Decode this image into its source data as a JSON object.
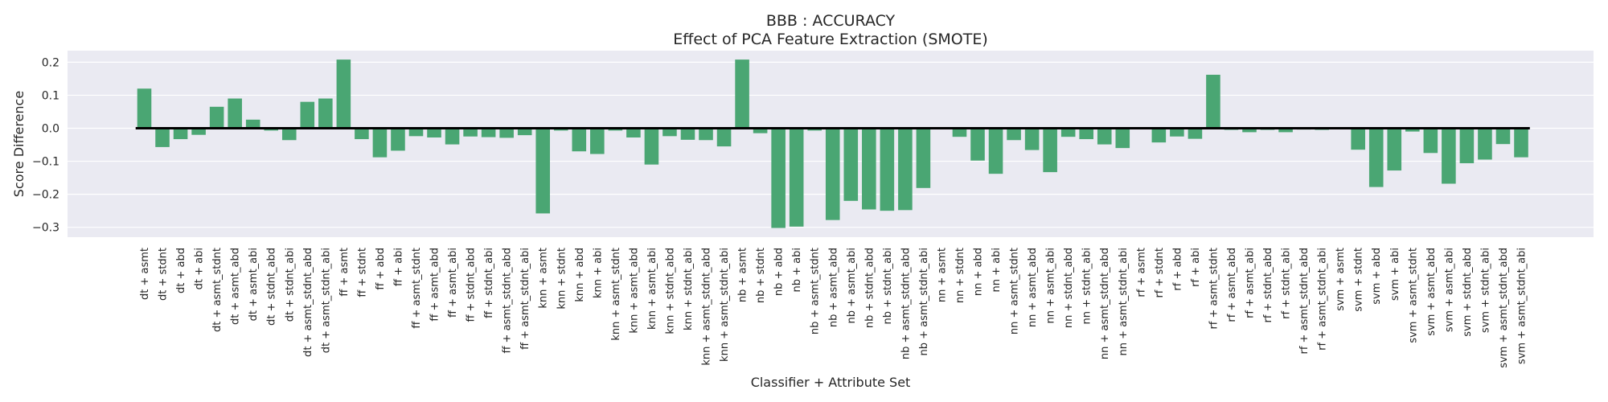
{
  "chart_data": {
    "type": "bar",
    "title": "BBB : ACCURACY",
    "subtitle": "Effect of PCA Feature Extraction (SMOTE)",
    "xlabel": "Classifier + Attribute Set",
    "ylabel": "Score Difference",
    "ylim": [
      -0.33,
      0.235
    ],
    "yticks": [
      -0.3,
      -0.2,
      -0.1,
      0.0,
      0.1,
      0.2
    ],
    "ytick_labels": [
      "−0.3",
      "−0.2",
      "−0.1",
      "0.0",
      "0.1",
      "0.2"
    ],
    "grid": true,
    "bar_color": "#4aa673",
    "background_color": "#eaeaf2",
    "zero_line": true,
    "categories": [
      "dt + asmt",
      "dt + stdnt",
      "dt + abd",
      "dt + abi",
      "dt + asmt_stdnt",
      "dt + asmt_abd",
      "dt + asmt_abi",
      "dt + stdnt_abd",
      "dt + stdnt_abi",
      "dt + asmt_stdnt_abd",
      "dt + asmt_stdnt_abi",
      "ff + asmt",
      "ff + stdnt",
      "ff + abd",
      "ff + abi",
      "ff + asmt_stdnt",
      "ff + asmt_abd",
      "ff + asmt_abi",
      "ff + stdnt_abd",
      "ff + stdnt_abi",
      "ff + asmt_stdnt_abd",
      "ff + asmt_stdnt_abi",
      "knn + asmt",
      "knn + stdnt",
      "knn + abd",
      "knn + abi",
      "knn + asmt_stdnt",
      "knn + asmt_abd",
      "knn + asmt_abi",
      "knn + stdnt_abd",
      "knn + stdnt_abi",
      "knn + asmt_stdnt_abd",
      "knn + asmt_stdnt_abi",
      "nb + asmt",
      "nb + stdnt",
      "nb + abd",
      "nb + abi",
      "nb + asmt_stdnt",
      "nb + asmt_abd",
      "nb + asmt_abi",
      "nb + stdnt_abd",
      "nb + stdnt_abi",
      "nb + asmt_stdnt_abd",
      "nb + asmt_stdnt_abi",
      "nn + asmt",
      "nn + stdnt",
      "nn + abd",
      "nn + abi",
      "nn + asmt_stdnt",
      "nn + asmt_abd",
      "nn + asmt_abi",
      "nn + stdnt_abd",
      "nn + stdnt_abi",
      "nn + asmt_stdnt_abd",
      "nn + asmt_stdnt_abi",
      "rf + asmt",
      "rf + stdnt",
      "rf + abd",
      "rf + abi",
      "rf + asmt_stdnt",
      "rf + asmt_abd",
      "rf + asmt_abi",
      "rf + stdnt_abd",
      "rf + stdnt_abi",
      "rf + asmt_stdnt_abd",
      "rf + asmt_stdnt_abi",
      "svm + asmt",
      "svm + stdnt",
      "svm + abd",
      "svm + abi",
      "svm + asmt_stdnt",
      "svm + asmt_abd",
      "svm + asmt_abi",
      "svm + stdnt_abd",
      "svm + stdnt_abi",
      "svm + asmt_stdnt_abd",
      "svm + asmt_stdnt_abi"
    ],
    "values": [
      0.12,
      -0.057,
      -0.033,
      -0.02,
      0.065,
      0.09,
      0.026,
      -0.007,
      -0.036,
      0.08,
      0.09,
      0.208,
      -0.033,
      -0.088,
      -0.068,
      -0.024,
      -0.028,
      -0.049,
      -0.025,
      -0.027,
      -0.029,
      -0.021,
      -0.258,
      -0.007,
      -0.07,
      -0.078,
      -0.007,
      -0.028,
      -0.11,
      -0.024,
      -0.035,
      -0.036,
      -0.055,
      0.208,
      -0.015,
      -0.302,
      -0.298,
      -0.007,
      -0.278,
      -0.22,
      -0.246,
      -0.25,
      -0.248,
      -0.181,
      0.0,
      -0.026,
      -0.098,
      -0.138,
      -0.036,
      -0.066,
      -0.133,
      -0.026,
      -0.033,
      -0.049,
      -0.06,
      0.0,
      -0.043,
      -0.025,
      -0.032,
      0.162,
      -0.005,
      -0.012,
      -0.005,
      -0.012,
      -0.004,
      -0.005,
      0.0,
      -0.065,
      -0.178,
      -0.128,
      -0.01,
      -0.075,
      -0.168,
      -0.106,
      -0.095,
      -0.048,
      -0.088
    ]
  }
}
